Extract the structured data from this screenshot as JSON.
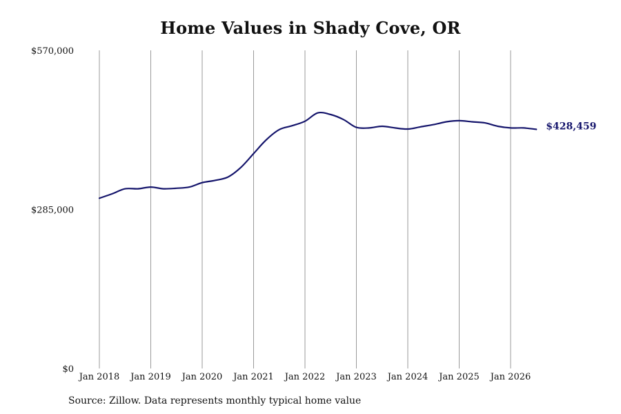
{
  "chart_data": {
    "type": "line",
    "title": "Home Values in Shady Cove, OR",
    "xlabel": "",
    "ylabel": "",
    "ylim": [
      0,
      570000
    ],
    "y_ticks": [
      {
        "value": 0,
        "label": "$0"
      },
      {
        "value": 285000,
        "label": "$285,000"
      },
      {
        "value": 570000,
        "label": "$570,000"
      }
    ],
    "x_ticks": [
      {
        "value": "2018-01",
        "label": "Jan 2018"
      },
      {
        "value": "2019-01",
        "label": "Jan 2019"
      },
      {
        "value": "2020-01",
        "label": "Jan 2020"
      },
      {
        "value": "2021-01",
        "label": "Jan 2021"
      },
      {
        "value": "2022-01",
        "label": "Jan 2022"
      },
      {
        "value": "2023-01",
        "label": "Jan 2023"
      },
      {
        "value": "2024-01",
        "label": "Jan 2024"
      },
      {
        "value": "2025-01",
        "label": "Jan 2025"
      },
      {
        "value": "2026-01",
        "label": "Jan 2026"
      }
    ],
    "grid": {
      "vertical": true,
      "horizontal": false
    },
    "line_color": "#14146b",
    "grid_color": "#999999",
    "series": [
      {
        "x": [
          "2018-01",
          "2018-04",
          "2018-07",
          "2018-10",
          "2019-01",
          "2019-04",
          "2019-07",
          "2019-10",
          "2020-01",
          "2020-04",
          "2020-07",
          "2020-10",
          "2021-01",
          "2021-04",
          "2021-07",
          "2021-10",
          "2022-01",
          "2022-04",
          "2022-07",
          "2022-10",
          "2023-01",
          "2023-04",
          "2023-07",
          "2023-10",
          "2024-01",
          "2024-04",
          "2024-07",
          "2024-10",
          "2025-01",
          "2025-04",
          "2025-07",
          "2025-10",
          "2026-01",
          "2026-04",
          "2026-07"
        ],
        "values": [
          305000,
          313000,
          322000,
          322000,
          325000,
          322000,
          323000,
          325000,
          333000,
          337000,
          343000,
          360000,
          385000,
          410000,
          428000,
          435000,
          443000,
          458000,
          455000,
          446000,
          432000,
          431000,
          434000,
          431000,
          429000,
          433000,
          437000,
          442000,
          444000,
          442000,
          440000,
          434000,
          431000,
          431000,
          428459
        ]
      }
    ],
    "end_label": "$428,459"
  },
  "source_note": "Source: Zillow. Data represents monthly typical home value"
}
